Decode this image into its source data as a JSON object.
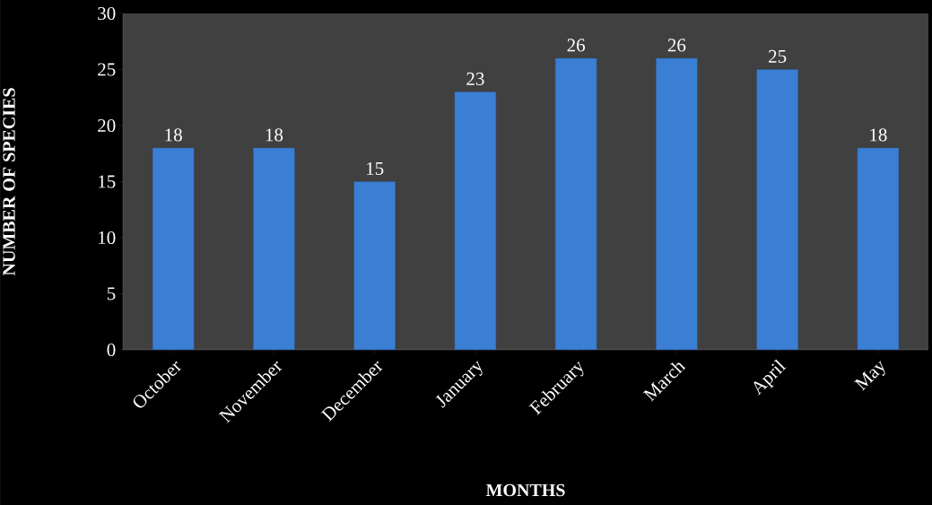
{
  "chart_data": {
    "type": "bar",
    "xlabel": "MONTHS",
    "ylabel": "NUMBER OF SPECIES",
    "categories": [
      "October",
      "November",
      "December",
      "January",
      "February",
      "March",
      "April",
      "May"
    ],
    "values": [
      18,
      18,
      15,
      23,
      26,
      26,
      25,
      18
    ],
    "color": "#3b7fd4",
    "ylim": [
      0,
      30
    ],
    "yticks": [
      0,
      5,
      10,
      15,
      20,
      25,
      30
    ],
    "data_labels": true,
    "grid": false
  }
}
